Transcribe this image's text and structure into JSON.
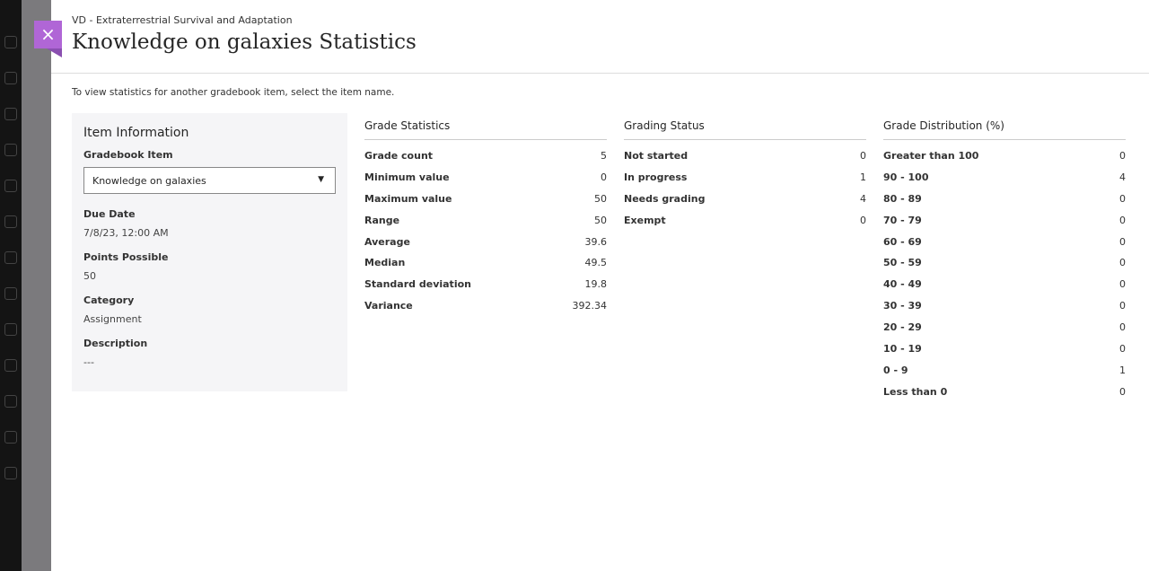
{
  "header": {
    "course": "VD - Extraterrestrial Survival and Adaptation",
    "title": "Knowledge on galaxies Statistics",
    "close_label": "×"
  },
  "hint": "To view statistics for another gradebook item, select the item name.",
  "item_info": {
    "heading": "Item Information",
    "gradebook_item_label": "Gradebook Item",
    "gradebook_item_value": "Knowledge on galaxies",
    "due_date_label": "Due Date",
    "due_date": "7/8/23, 12:00 AM",
    "points_label": "Points Possible",
    "points": "50",
    "category_label": "Category",
    "category": "Assignment",
    "description_label": "Description",
    "description": "---"
  },
  "grade_statistics": {
    "heading": "Grade Statistics",
    "rows": [
      {
        "label": "Grade count",
        "value": "5"
      },
      {
        "label": "Minimum value",
        "value": "0"
      },
      {
        "label": "Maximum value",
        "value": "50"
      },
      {
        "label": "Range",
        "value": "50"
      },
      {
        "label": "Average",
        "value": "39.6"
      },
      {
        "label": "Median",
        "value": "49.5"
      },
      {
        "label": "Standard deviation",
        "value": "19.8"
      },
      {
        "label": "Variance",
        "value": "392.34"
      }
    ]
  },
  "grading_status": {
    "heading": "Grading Status",
    "rows": [
      {
        "label": "Not started",
        "value": "0"
      },
      {
        "label": "In progress",
        "value": "1"
      },
      {
        "label": "Needs grading",
        "value": "4"
      },
      {
        "label": "Exempt",
        "value": "0"
      }
    ]
  },
  "grade_distribution": {
    "heading": "Grade Distribution (%)",
    "rows": [
      {
        "label": "Greater than 100",
        "value": "0"
      },
      {
        "label": "90 - 100",
        "value": "4"
      },
      {
        "label": "80 - 89",
        "value": "0"
      },
      {
        "label": "70 - 79",
        "value": "0"
      },
      {
        "label": "60 - 69",
        "value": "0"
      },
      {
        "label": "50 - 59",
        "value": "0"
      },
      {
        "label": "40 - 49",
        "value": "0"
      },
      {
        "label": "30 - 39",
        "value": "0"
      },
      {
        "label": "20 - 29",
        "value": "0"
      },
      {
        "label": "10 - 19",
        "value": "0"
      },
      {
        "label": "0 - 9",
        "value": "1"
      },
      {
        "label": "Less than 0",
        "value": "0"
      }
    ]
  },
  "colors": {
    "accent": "#b066d6"
  }
}
